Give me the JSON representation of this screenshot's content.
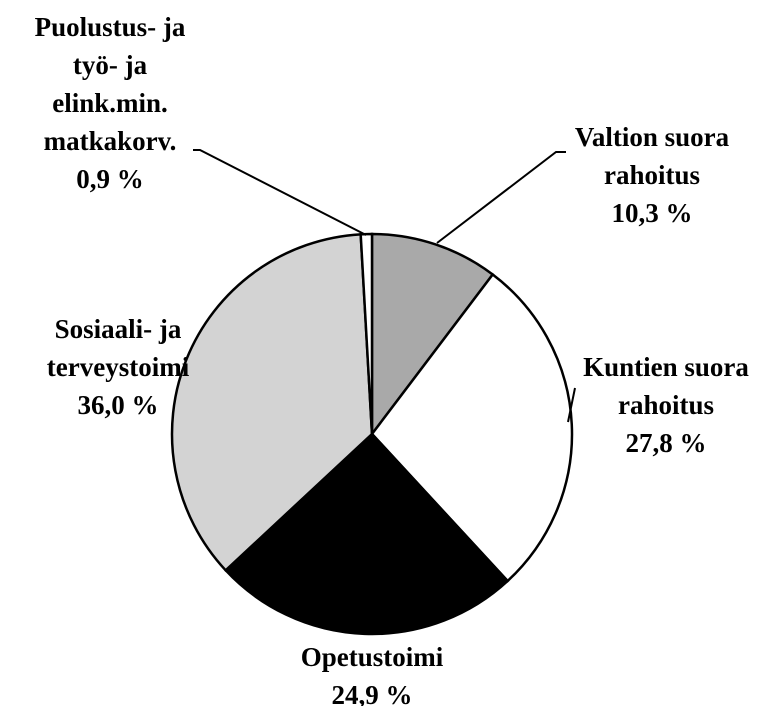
{
  "chart_data": {
    "type": "pie",
    "categories": [
      "Valtion suora\nrahoitus",
      "Kuntien suora\nrahoitus",
      "Opetustoimi",
      "Sosiaali- ja\nterveystoimi",
      "Puolustus- ja\ntyö- ja\nelink.min.\nmatkakorv."
    ],
    "values": [
      10.3,
      27.8,
      24.9,
      36.0,
      0.9
    ],
    "value_labels": [
      "10,3 %",
      "27,8 %",
      "24,9 %",
      "36,0 %",
      "0,9 %"
    ],
    "colors": [
      "#a9a9a9",
      "#ffffff",
      "#000000",
      "#d3d3d3",
      "#ffffff"
    ]
  }
}
